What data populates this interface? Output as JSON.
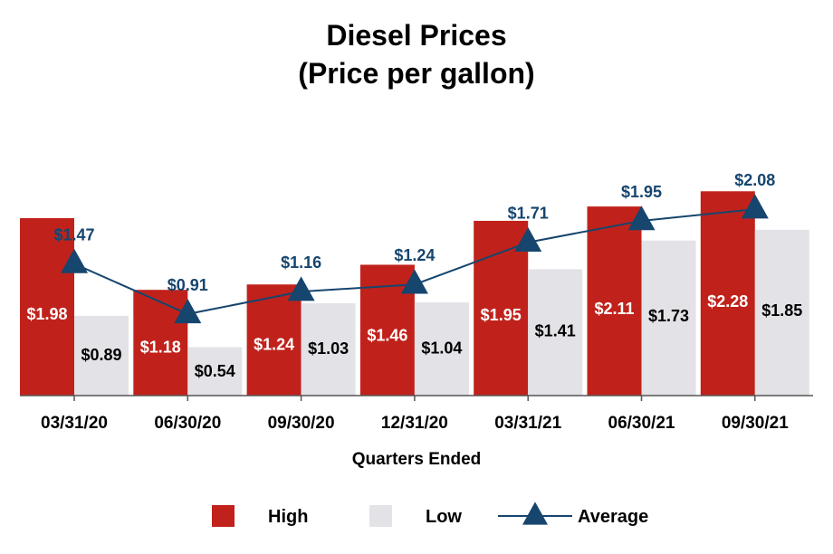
{
  "chart_data": {
    "type": "bar",
    "title": [
      "Diesel Prices",
      "(Price per gallon)"
    ],
    "xlabel": "Quarters Ended",
    "ylabel": "",
    "ylim": [
      0,
      2.5
    ],
    "grid": false,
    "legend": "bottom",
    "categories": [
      "03/31/20",
      "06/30/20",
      "09/30/20",
      "12/31/20",
      "03/31/21",
      "06/30/21",
      "09/30/21"
    ],
    "series": [
      {
        "name": "High",
        "kind": "bar",
        "color": "#c0221b",
        "values": [
          1.98,
          1.18,
          1.24,
          1.46,
          1.95,
          2.11,
          2.28
        ],
        "labels": [
          "$1.98",
          "$1.18",
          "$1.24",
          "$1.46",
          "$1.95",
          "$2.11",
          "$2.28"
        ]
      },
      {
        "name": "Low",
        "kind": "bar",
        "color": "#e2e2e7",
        "values": [
          0.89,
          0.54,
          1.03,
          1.04,
          1.41,
          1.73,
          1.85
        ],
        "labels": [
          "$0.89",
          "$0.54",
          "$1.03",
          "$1.04",
          "$1.41",
          "$1.73",
          "$1.85"
        ]
      },
      {
        "name": "Average",
        "kind": "line",
        "color": "#16456e",
        "values": [
          1.47,
          0.91,
          1.16,
          1.24,
          1.71,
          1.95,
          2.08
        ],
        "labels": [
          "$1.47",
          "$0.91",
          "$1.16",
          "$1.24",
          "$1.71",
          "$1.95",
          "$2.08"
        ]
      }
    ]
  }
}
